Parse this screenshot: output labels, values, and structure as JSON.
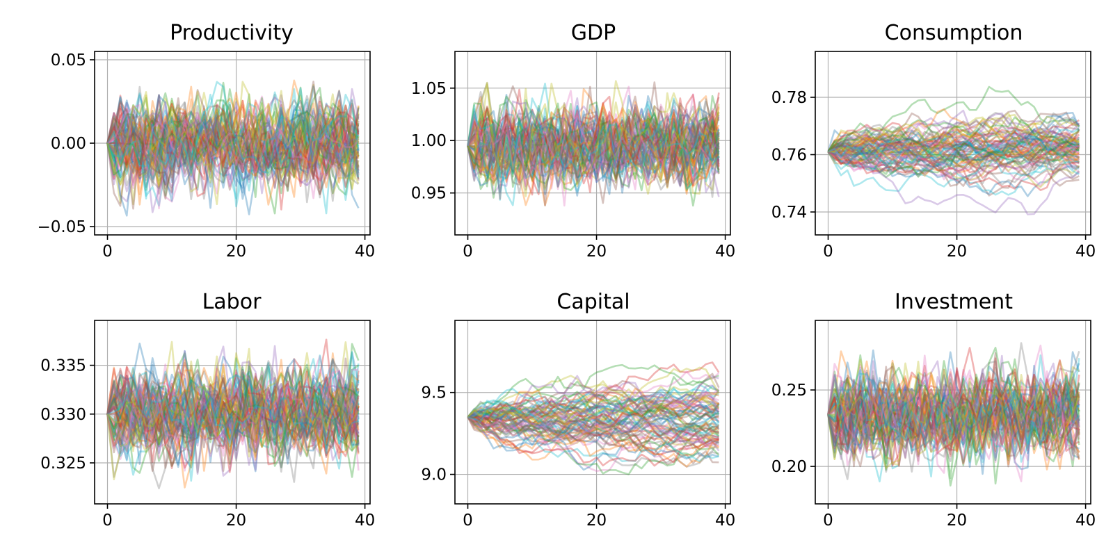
{
  "chart_data": [
    {
      "type": "line",
      "title": "Productivity",
      "xlim": [
        -2,
        40.8
      ],
      "ylim": [
        -0.055,
        0.055
      ],
      "xticks": [
        0,
        20,
        40
      ],
      "xtick_labels": [
        "0",
        "20",
        "40"
      ],
      "yticks": [
        -0.05,
        0.0,
        0.05
      ],
      "ytick_labels": [
        "−0.05",
        "0.00",
        "0.05"
      ],
      "grid": true,
      "simulation": {
        "n_paths": 80,
        "periods": 40,
        "start": 0.0,
        "mean": 0.0,
        "persistence": 0.3,
        "shock_sd": 0.0125
      }
    },
    {
      "type": "line",
      "title": "GDP",
      "xlim": [
        -2,
        40.8
      ],
      "ylim": [
        0.91,
        1.085
      ],
      "xticks": [
        0,
        20,
        40
      ],
      "xtick_labels": [
        "0",
        "20",
        "40"
      ],
      "yticks": [
        0.95,
        1.0,
        1.05
      ],
      "ytick_labels": [
        "0.95",
        "1.00",
        "1.05"
      ],
      "grid": true,
      "simulation": {
        "n_paths": 80,
        "periods": 40,
        "start": 0.995,
        "mean": 0.995,
        "persistence": 0.3,
        "shock_sd": 0.0185
      }
    },
    {
      "type": "line",
      "title": "Consumption",
      "xlim": [
        -2,
        40.8
      ],
      "ylim": [
        0.732,
        0.796
      ],
      "xticks": [
        0,
        20,
        40
      ],
      "xtick_labels": [
        "0",
        "20",
        "40"
      ],
      "yticks": [
        0.74,
        0.76,
        0.78
      ],
      "ytick_labels": [
        "0.74",
        "0.76",
        "0.78"
      ],
      "grid": true,
      "simulation": {
        "n_paths": 80,
        "periods": 40,
        "start": 0.761,
        "mean": 0.761,
        "persistence": 0.94,
        "shock_sd": 0.0019
      }
    },
    {
      "type": "line",
      "title": "Labor",
      "xlim": [
        -2,
        40.8
      ],
      "ylim": [
        0.3208,
        0.3396
      ],
      "xticks": [
        0,
        20,
        40
      ],
      "xtick_labels": [
        "0",
        "20",
        "40"
      ],
      "yticks": [
        0.325,
        0.33,
        0.335
      ],
      "ytick_labels": [
        "0.325",
        "0.330",
        "0.335"
      ],
      "grid": true,
      "simulation": {
        "n_paths": 80,
        "periods": 40,
        "start": 0.33,
        "mean": 0.33,
        "persistence": 0.3,
        "shock_sd": 0.0022
      }
    },
    {
      "type": "line",
      "title": "Capital",
      "xlim": [
        -2,
        40.8
      ],
      "ylim": [
        8.82,
        9.94
      ],
      "xticks": [
        0,
        20,
        40
      ],
      "xtick_labels": [
        "0",
        "20",
        "40"
      ],
      "yticks": [
        9.0,
        9.5
      ],
      "ytick_labels": [
        "9.0",
        "9.5"
      ],
      "grid": true,
      "simulation": {
        "n_paths": 80,
        "periods": 40,
        "start": 9.35,
        "mean": 9.35,
        "persistence": 0.97,
        "shock_sd": 0.032
      }
    },
    {
      "type": "line",
      "title": "Investment",
      "xlim": [
        -2,
        40.8
      ],
      "ylim": [
        0.1755,
        0.2955
      ],
      "xticks": [
        0,
        20,
        40
      ],
      "xtick_labels": [
        "0",
        "20",
        "40"
      ],
      "yticks": [
        0.2,
        0.25
      ],
      "ytick_labels": [
        "0.20",
        "0.25"
      ],
      "grid": true,
      "simulation": {
        "n_paths": 80,
        "periods": 40,
        "start": 0.234,
        "mean": 0.234,
        "persistence": 0.3,
        "shock_sd": 0.0135
      }
    }
  ],
  "colors": [
    "#1f77b4",
    "#ff7f0e",
    "#2ca02c",
    "#d62728",
    "#9467bd",
    "#8c564b",
    "#e377c2",
    "#7f7f7f",
    "#bcbd22",
    "#17becf"
  ]
}
